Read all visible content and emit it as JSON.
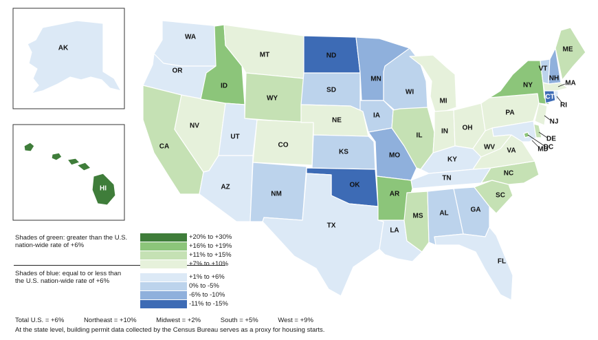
{
  "colors": {
    "g4": "#3f7d3a",
    "g3": "#8cc57a",
    "g2": "#c5e1b4",
    "g1": "#e6f1db",
    "b1": "#dce9f6",
    "b2": "#bcd3ec",
    "b3": "#8fb0dc",
    "b4": "#3d6bb5"
  },
  "legend": {
    "green_heading": "Shades of green: greater than the U.S. nation-wide rate of +6%",
    "blue_heading": "Shades of blue: equal to or less than the U.S. nation-wide rate of +6%",
    "items": [
      {
        "color": "g4",
        "label": "+20% to +30%"
      },
      {
        "color": "g3",
        "label": "+16% to +19%"
      },
      {
        "color": "g2",
        "label": "+11% to +15%"
      },
      {
        "color": "g1",
        "label": "+7% to +10%"
      },
      {
        "color": "b1",
        "label": "+1% to +6%"
      },
      {
        "color": "b2",
        "label": "0% to -5%"
      },
      {
        "color": "b3",
        "label": "-6% to -10%"
      },
      {
        "color": "b4",
        "label": "-11% to -15%"
      }
    ]
  },
  "totals": [
    "Total U.S. = +6%",
    "Northeast = +10%",
    "Midwest = +2%",
    "South = +5%",
    "West = +9%"
  ],
  "footnote": "At the state level, building permit data collected by the Census Bureau serves as a proxy for housing starts.",
  "states": {
    "WA": "b1",
    "OR": "b1",
    "CA": "g2",
    "NV": "g1",
    "ID": "g3",
    "MT": "g1",
    "WY": "g2",
    "UT": "b1",
    "CO": "g1",
    "AZ": "b1",
    "NM": "b2",
    "ND": "b4",
    "SD": "b2",
    "NE": "g1",
    "KS": "b2",
    "OK": "b4",
    "TX": "b1",
    "MN": "b3",
    "IA": "b2",
    "MO": "b3",
    "AR": "g3",
    "LA": "b1",
    "WI": "b2",
    "IL": "g2",
    "MI": "g1",
    "IN": "g1",
    "OH": "g1",
    "KY": "b1",
    "TN": "b1",
    "MS": "g2",
    "AL": "b2",
    "GA": "b2",
    "FL": "b1",
    "SC": "g2",
    "NC": "g2",
    "VA": "g1",
    "WV": "g1",
    "PA": "g1",
    "NY": "g3",
    "VT": "b2",
    "NH": "b3",
    "ME": "g2",
    "MA": "g1",
    "RI": "b1",
    "CT": "b4",
    "NJ": "g1",
    "DE": "g2",
    "MD": "b1",
    "DC": "g3",
    "AK": "b1",
    "HI": "g4"
  }
}
